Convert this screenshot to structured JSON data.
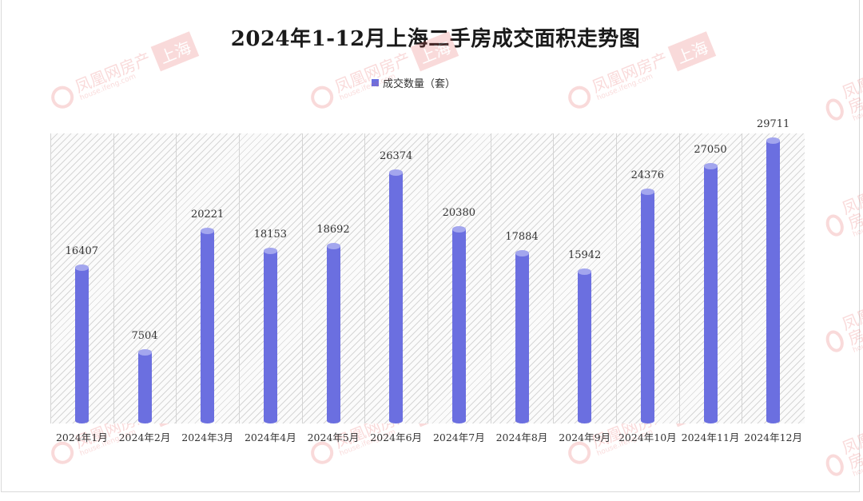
{
  "title": "2024年1-12月上海二手房成交面积走势图",
  "legend": {
    "label": "成交数量（套）",
    "color": "#6b6fe0"
  },
  "watermark": {
    "brand": "凤凰网房产",
    "site": "house.ifeng.com",
    "tag": "上海"
  },
  "chart_data": {
    "type": "bar",
    "title": "2024年1-12月上海二手房成交面积走势图",
    "xlabel": "",
    "ylabel": "",
    "legend": [
      "成交数量（套）"
    ],
    "legend_position": "top",
    "grid": false,
    "ylim": [
      0,
      30500
    ],
    "categories": [
      "2024年1月",
      "2024年2月",
      "2024年3月",
      "2024年4月",
      "2024年5月",
      "2024年6月",
      "2024年7月",
      "2024年8月",
      "2024年9月",
      "2024年10月",
      "2024年11月",
      "2024年12月"
    ],
    "series": [
      {
        "name": "成交数量（套）",
        "color": "#6b6fe0",
        "values": [
          16407,
          7504,
          20221,
          18153,
          18692,
          26374,
          20380,
          17884,
          15942,
          24376,
          27050,
          29711
        ]
      }
    ]
  }
}
